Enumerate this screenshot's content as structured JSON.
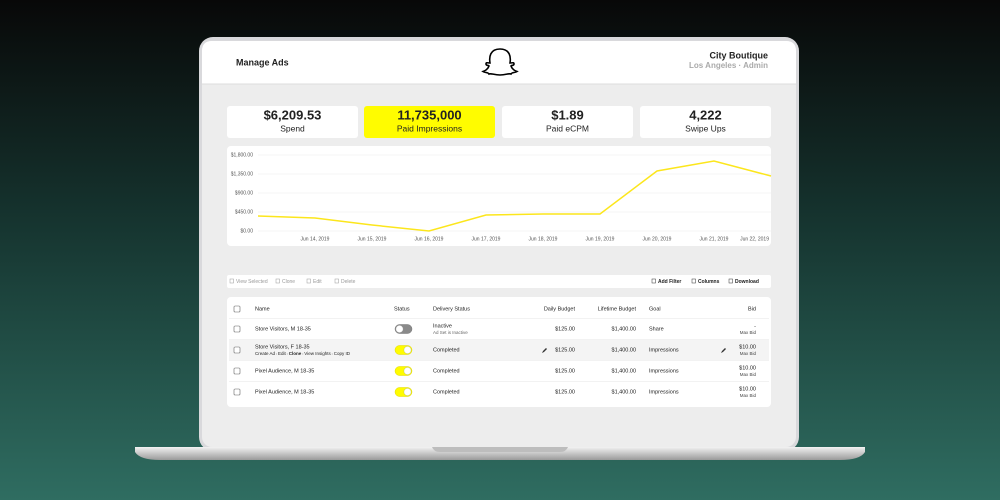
{
  "header": {
    "title": "Manage Ads",
    "account": "City Boutique",
    "location": "Los Angeles · Admin"
  },
  "metrics": [
    {
      "value": "$6,209.53",
      "label": "Spend",
      "highlight": false
    },
    {
      "value": "11,735,000",
      "label": "Paid Impressions",
      "highlight": true
    },
    {
      "value": "$1.89",
      "label": "Paid eCPM",
      "highlight": false
    },
    {
      "value": "4,222",
      "label": "Swipe Ups",
      "highlight": false
    }
  ],
  "chart_data": {
    "type": "line",
    "x": [
      null,
      "Jun 14, 2019",
      "Jun 15, 2019",
      "Jun 16, 2019",
      "Jun 17, 2019",
      "Jun 18, 2019",
      "Jun 19, 2019",
      "Jun 20, 2019",
      "Jun 21, 2019",
      "Jun 22, 2019"
    ],
    "values": [
      355,
      308,
      142,
      0,
      379,
      403,
      403,
      1421,
      1658,
      1302
    ],
    "color": "#fce61c",
    "ylim": [
      0,
      1800
    ],
    "yticks": [
      {
        "value": 0,
        "label": "$0.00"
      },
      {
        "value": 450,
        "label": "$450.00"
      },
      {
        "value": 900,
        "label": "$900.00"
      },
      {
        "value": 1350,
        "label": "$1,350.00"
      },
      {
        "value": 1800,
        "label": "$1,800.00"
      }
    ],
    "grid": true
  },
  "toolbar": {
    "left": [
      "View Selected",
      "Clone",
      "Edit",
      "Delete"
    ],
    "right": [
      "Add Filter",
      "Columns",
      "Download"
    ]
  },
  "table": {
    "columns": [
      "Name",
      "Status",
      "Delivery Status",
      "Daily Budget",
      "Lifetime Budget",
      "Goal",
      "Bid"
    ],
    "rows": [
      {
        "name": "Store Visitors, M 18-35",
        "active": false,
        "delivery": "Inactive",
        "delivery_note": "Ad Set is Inactive",
        "daily": "$125.00",
        "lifetime": "$1,400.00",
        "goal": "Share",
        "bid": "-",
        "bid_note": "Max Bid"
      },
      {
        "name": "Store Visitors, F 18-35",
        "actions": [
          "Create Ad",
          "Edit",
          "Clone",
          "View Insights",
          "Copy ID"
        ],
        "active": true,
        "delivery": "Completed",
        "daily": "$125.00",
        "lifetime": "$1,400.00",
        "goal": "Impressions",
        "bid": "$10.00",
        "bid_note": "Max Bid",
        "editable": true
      },
      {
        "name": "Pixel Audience, M 18-35",
        "active": true,
        "delivery": "Completed",
        "daily": "$125.00",
        "lifetime": "$1,400.00",
        "goal": "Impressions",
        "bid": "$10.00",
        "bid_note": "Max Bid"
      },
      {
        "name": "Pixel Audience, M 18-35",
        "active": true,
        "delivery": "Completed",
        "daily": "$125.00",
        "lifetime": "$1,400.00",
        "goal": "Impressions",
        "bid": "$10.00",
        "bid_note": "Max Bid"
      }
    ]
  }
}
